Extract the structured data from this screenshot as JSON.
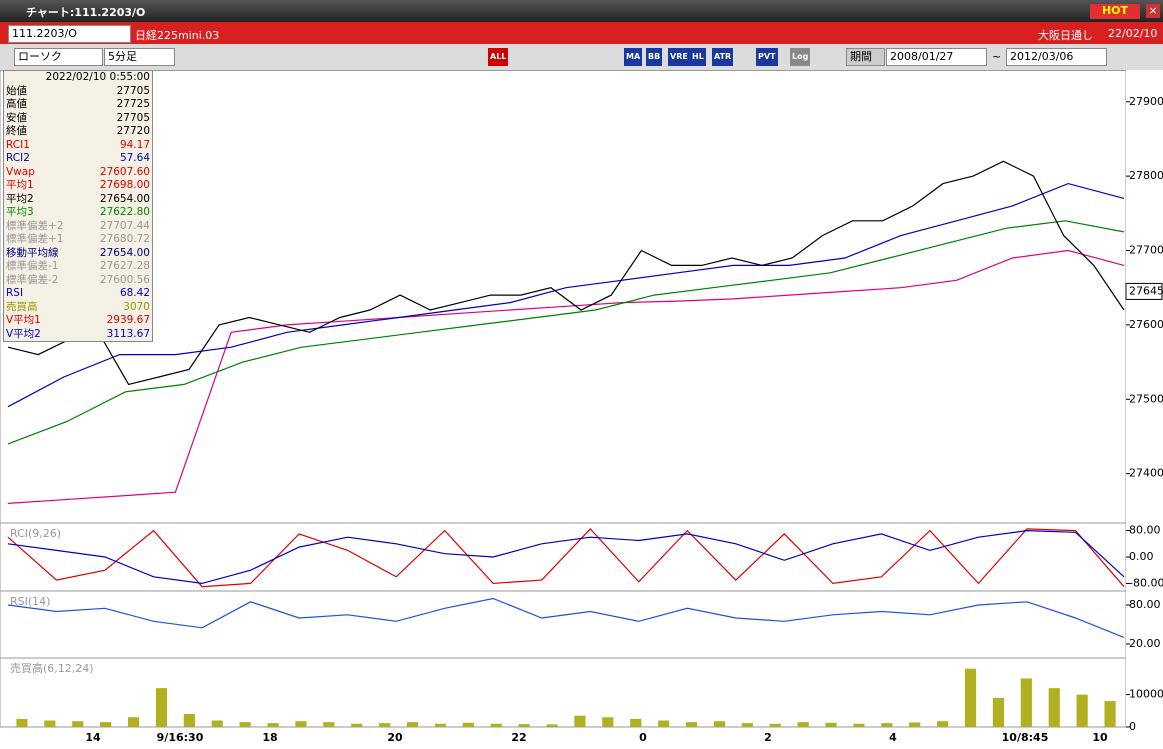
{
  "window": {
    "title": "チャート:111.2203/O",
    "hot": "HOT"
  },
  "header": {
    "symbol": "111.2203/O",
    "name": "日経225mini.03",
    "market": "大阪日通し",
    "date": "22/02/10"
  },
  "toolbar": {
    "chart_type": "ローソク",
    "interval": "5分足",
    "buttons": [
      "ALL",
      "MA",
      "BB",
      "VRE",
      "HL",
      "ATR",
      "PVT",
      "Log"
    ],
    "period": "期間",
    "from": "2008/01/27",
    "sep": "~",
    "to": "2012/03/06"
  },
  "info": {
    "datetime": "2022/02/10 0:55:00",
    "rows": [
      {
        "label": "始値",
        "value": "27705",
        "color": "#000"
      },
      {
        "label": "高値",
        "value": "27725",
        "color": "#000"
      },
      {
        "label": "安値",
        "value": "27705",
        "color": "#000"
      },
      {
        "label": "終値",
        "value": "27720",
        "color": "#000"
      },
      {
        "label": "RCI1",
        "value": "94.17",
        "color": "#d00"
      },
      {
        "label": "RCI2",
        "value": "57.64",
        "color": "#00a"
      },
      {
        "label": "Vwap",
        "value": "27607.60",
        "color": "#d00"
      },
      {
        "label": "平均1",
        "value": "27698.00",
        "color": "#d00"
      },
      {
        "label": "平均2",
        "value": "27654.00",
        "color": "#000"
      },
      {
        "label": "平均3",
        "value": "27622.80",
        "color": "#080"
      },
      {
        "label": "標準偏差+2",
        "value": "27707.44",
        "color": "#999"
      },
      {
        "label": "標準偏差+1",
        "value": "27680.72",
        "color": "#999"
      },
      {
        "label": "移動平均線",
        "value": "27654.00",
        "color": "#008"
      },
      {
        "label": "標準偏差-1",
        "value": "27627.28",
        "color": "#999"
      },
      {
        "label": "標準偏差-2",
        "value": "27600.56",
        "color": "#999"
      },
      {
        "label": "RSI",
        "value": "68.42",
        "color": "#00c"
      },
      {
        "label": "売買高",
        "value": "3070",
        "color": "#990"
      },
      {
        "label": "V平均1",
        "value": "2939.67",
        "color": "#d00"
      },
      {
        "label": "V平均2",
        "value": "3113.67",
        "color": "#00c"
      }
    ]
  },
  "chart_data": [
    {
      "type": "line",
      "ylim": [
        27335,
        27940
      ],
      "yticks": [
        27400,
        27500,
        27600,
        27700,
        27800,
        27900
      ],
      "last": 27645,
      "xlabels": [
        "14",
        "9/16:30",
        "18",
        "20",
        "22",
        "0",
        "2",
        "4",
        "10/8:45",
        "10"
      ],
      "series": [
        {
          "color": "#e0007f",
          "values": [
            27360,
            27365,
            27370,
            27375,
            27590,
            27600,
            27605,
            27610,
            27615,
            27620,
            27625,
            27630,
            27632,
            27635,
            27640,
            27645,
            27650,
            27660,
            27690,
            27700,
            27680
          ]
        },
        {
          "color": "#008000",
          "values": [
            27440,
            27470,
            27510,
            27520,
            27550,
            27570,
            27580,
            27590,
            27600,
            27610,
            27620,
            27640,
            27650,
            27660,
            27670,
            27690,
            27710,
            27730,
            27740,
            27725
          ]
        },
        {
          "color": "#0000c0",
          "values": [
            27490,
            27530,
            27560,
            27560,
            27570,
            27590,
            27600,
            27610,
            27620,
            27630,
            27650,
            27660,
            27670,
            27680,
            27680,
            27690,
            27720,
            27740,
            27760,
            27790,
            27770
          ]
        },
        {
          "color": "#000000",
          "values": [
            27570,
            27560,
            27580,
            27590,
            27520,
            27530,
            27540,
            27600,
            27610,
            27600,
            27590,
            27610,
            27620,
            27640,
            27620,
            27630,
            27640,
            27640,
            27650,
            27620,
            27640,
            27700,
            27680,
            27680,
            27690,
            27680,
            27690,
            27720,
            27740,
            27740,
            27760,
            27790,
            27800,
            27820,
            27800,
            27720,
            27680,
            27620
          ]
        }
      ]
    },
    {
      "type": "line",
      "title": "RCI(9,26)",
      "ylim": [
        -100,
        100
      ],
      "yticks": [
        {
          "value": 80,
          "label": "80.00"
        },
        {
          "value": 0,
          "label": "0.00"
        },
        {
          "value": -80,
          "label": "-80.00"
        }
      ],
      "series": [
        {
          "color": "#e00000",
          "values": [
            60,
            -70,
            -40,
            80,
            -90,
            -80,
            70,
            20,
            -60,
            80,
            -80,
            -70,
            85,
            -75,
            80,
            -70,
            70,
            -80,
            -60,
            80,
            -80,
            85,
            80,
            -90
          ]
        },
        {
          "color": "#0000c0",
          "values": [
            40,
            20,
            0,
            -60,
            -80,
            -40,
            30,
            60,
            40,
            10,
            0,
            40,
            60,
            50,
            70,
            40,
            -10,
            40,
            70,
            20,
            60,
            80,
            75,
            -60
          ]
        }
      ]
    },
    {
      "type": "line",
      "title": "RSI(14)",
      "ylim": [
        0,
        100
      ],
      "yticks": [
        {
          "value": 80,
          "label": "80.00"
        },
        {
          "value": 20,
          "label": "20.00"
        }
      ],
      "series": [
        {
          "color": "#2050e0",
          "values": [
            80,
            70,
            75,
            55,
            45,
            85,
            60,
            65,
            55,
            75,
            90,
            60,
            70,
            55,
            75,
            60,
            55,
            65,
            70,
            65,
            80,
            85,
            60,
            30
          ]
        }
      ]
    },
    {
      "type": "bar",
      "title": "売買高(6,12,24)",
      "ylim": [
        0,
        21000
      ],
      "yticks": [
        10000,
        0
      ],
      "color": "#b0b020",
      "values": [
        2500,
        2000,
        1800,
        1500,
        3000,
        12000,
        4000,
        2000,
        1500,
        1200,
        1800,
        1500,
        1000,
        1200,
        1500,
        1000,
        1300,
        1000,
        900,
        800,
        3500,
        3000,
        2500,
        2000,
        1500,
        1800,
        1200,
        1000,
        1500,
        1300,
        1000,
        1200,
        1400,
        1800,
        18000,
        9000,
        15000,
        12000,
        10000,
        8000
      ]
    }
  ]
}
